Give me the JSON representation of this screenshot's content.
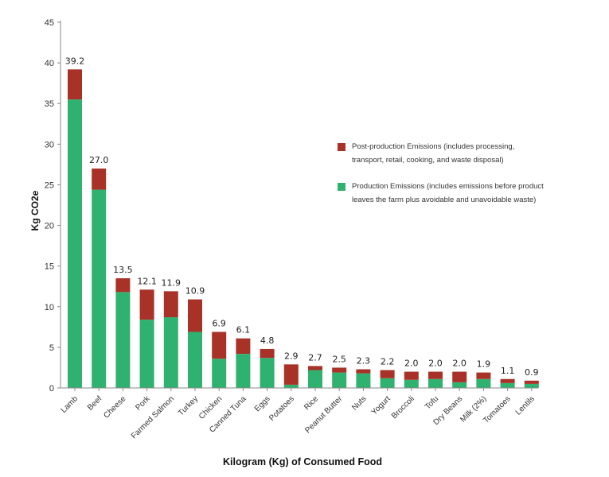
{
  "chart_data": {
    "type": "bar",
    "stacked": true,
    "xlabel": "Kilogram (Kg) of Consumed Food",
    "ylabel": "Kg CO2e",
    "ylim": [
      0,
      45
    ],
    "yticks": [
      0,
      5,
      10,
      15,
      20,
      25,
      30,
      35,
      40,
      45
    ],
    "grid": false,
    "legend_position": "right",
    "categories": [
      "Lamb",
      "Beef",
      "Cheese",
      "Pork",
      "Farmed Salmon",
      "Turkey",
      "Chicken",
      "Canned Tuna",
      "Eggs",
      "Potatoes",
      "Rice",
      "Peanut Butter",
      "Nuts",
      "Yogurt",
      "Broccoli",
      "Tofu",
      "Dry Beans",
      "Milk (2%)",
      "Tomatoes",
      "Lentils"
    ],
    "totals_labels": [
      "39.2",
      "27.0",
      "13.5",
      "12.1",
      "11.9",
      "10.9",
      "6.9",
      "6.1",
      "4.8",
      "2.9",
      "2.7",
      "2.5",
      "2.3",
      "2.2",
      "2.0",
      "2.0",
      "2.0",
      "1.9",
      "1.1",
      "0.9"
    ],
    "series": [
      {
        "name": "Production Emissions (includes emissions before product leaves the farm plus avoidable and unavoidable waste)",
        "color": "#2fb26f",
        "values": [
          35.5,
          24.4,
          11.8,
          8.4,
          8.7,
          6.9,
          3.6,
          4.2,
          3.7,
          0.4,
          2.2,
          1.9,
          1.8,
          1.2,
          1.0,
          1.1,
          0.7,
          1.1,
          0.6,
          0.5
        ]
      },
      {
        "name": "Post-production Emissions (includes processing, transport, retail, cooking, and waste disposal)",
        "color": "#a83228",
        "values": [
          3.7,
          2.6,
          1.7,
          3.7,
          3.2,
          4.0,
          3.3,
          1.9,
          1.1,
          2.5,
          0.5,
          0.6,
          0.5,
          1.0,
          1.0,
          0.9,
          1.3,
          0.8,
          0.5,
          0.4
        ]
      }
    ]
  },
  "legend": [
    {
      "label": "Post-production Emissions (includes processing, transport, retail, cooking, and waste disposal)",
      "color": "#a83228"
    },
    {
      "label": "Production Emissions (includes emissions before product leaves the farm plus avoidable and unavoidable waste)",
      "color": "#2fb26f"
    }
  ],
  "colors": {
    "axis": "#888888",
    "text": "#222222"
  }
}
